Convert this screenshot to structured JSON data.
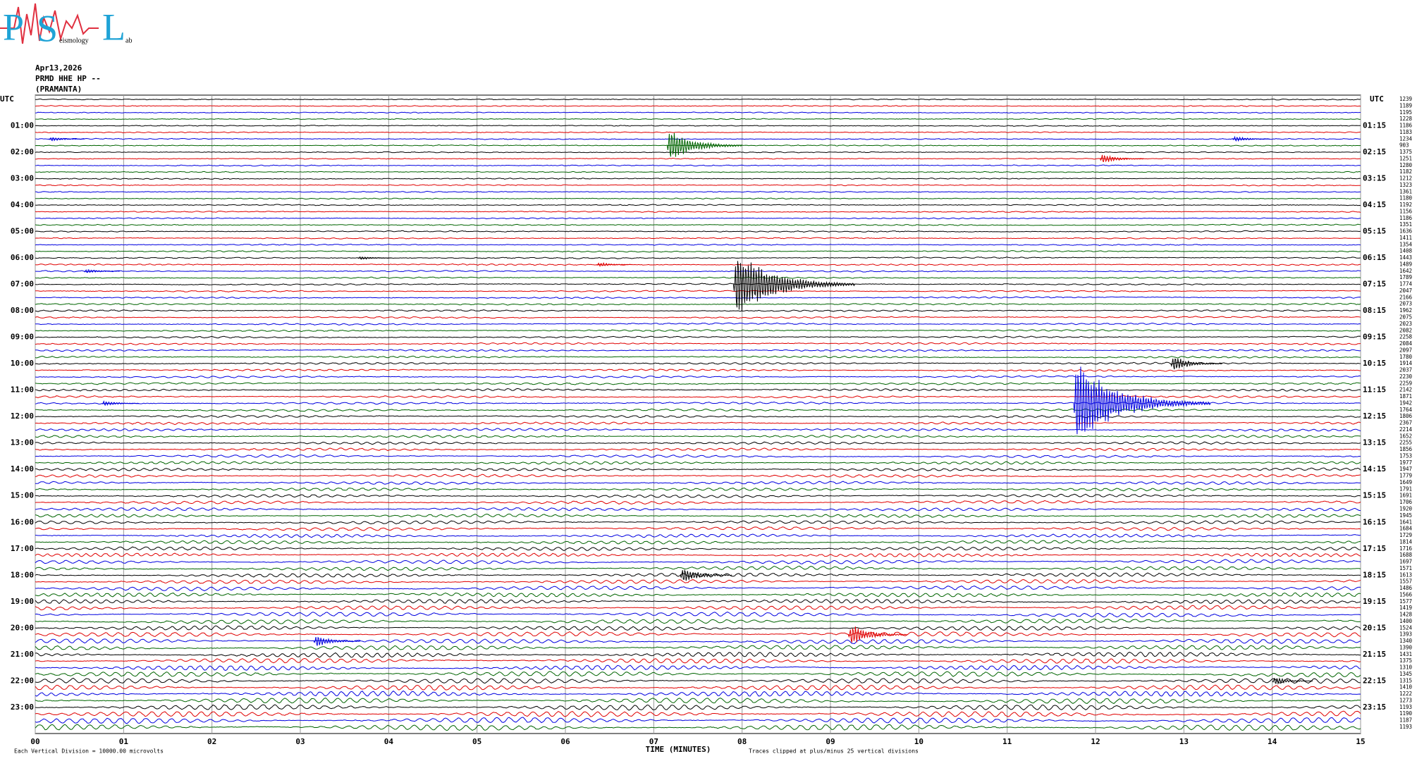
{
  "chart_data": {
    "type": "helicorder",
    "logo": {
      "letters": [
        "P",
        "S",
        "L"
      ],
      "words": [
        "eismology",
        "ab"
      ]
    },
    "header": [
      "Apr13,2026",
      "PRMD HHE HP --",
      "(PRAMANTA)"
    ],
    "left_labels": [
      "UTC",
      "01:00",
      "02:00",
      "03:00",
      "04:00",
      "05:00",
      "06:00",
      "07:00",
      "08:00",
      "09:00",
      "10:00",
      "11:00",
      "12:00",
      "13:00",
      "14:00",
      "15:00",
      "16:00",
      "17:00",
      "18:00",
      "19:00",
      "20:00",
      "21:00",
      "22:00",
      "23:00"
    ],
    "right_labels": [
      "UTC",
      "01:15",
      "02:15",
      "03:15",
      "04:15",
      "05:15",
      "06:15",
      "07:15",
      "08:15",
      "09:15",
      "10:15",
      "11:15",
      "12:15",
      "13:15",
      "14:15",
      "15:15",
      "16:15",
      "17:15",
      "18:15",
      "19:15",
      "20:15",
      "21:15",
      "22:15",
      "23:15"
    ],
    "trace_counts": [
      1239,
      1189,
      1195,
      1228,
      1186,
      1183,
      1234,
      903,
      1375,
      1251,
      1280,
      1182,
      1212,
      1323,
      1361,
      1180,
      1192,
      1156,
      1186,
      1351,
      1636,
      1411,
      1354,
      1408,
      1443,
      1489,
      1642,
      1789,
      1774,
      2047,
      2166,
      2073,
      1962,
      2075,
      2023,
      2082,
      2258,
      2084,
      2097,
      1780,
      1914,
      2037,
      2230,
      2259,
      2142,
      1871,
      1942,
      1764,
      1806,
      2367,
      2214,
      1652,
      2255,
      1856,
      1753,
      1977,
      1947,
      1779,
      1649,
      1791,
      1691,
      1706,
      1920,
      1945,
      1641,
      1684,
      1729,
      1814,
      1716,
      1688,
      1697,
      1571,
      1613,
      1557,
      1486,
      1566,
      1577,
      1419,
      1428,
      1400,
      1524,
      1393,
      1340,
      1390,
      1431,
      1375,
      1310,
      1345,
      1315,
      1410,
      1222,
      1273,
      1193,
      1190,
      1187,
      1193
    ],
    "trace_colors": [
      "#000000",
      "#e00000",
      "#0000e0",
      "#006400"
    ],
    "xlim": [
      0,
      15
    ],
    "xticks": [
      {
        "value": 0,
        "label": "00"
      },
      {
        "value": 1,
        "label": "01"
      },
      {
        "value": 2,
        "label": "02"
      },
      {
        "value": 3,
        "label": "03"
      },
      {
        "value": 4,
        "label": "04"
      },
      {
        "value": 5,
        "label": "05"
      },
      {
        "value": 6,
        "label": "06"
      },
      {
        "value": 7,
        "label": "07"
      },
      {
        "value": 8,
        "label": "08"
      },
      {
        "value": 9,
        "label": "09"
      },
      {
        "value": 10,
        "label": "10"
      },
      {
        "value": 11,
        "label": "11"
      },
      {
        "value": 12,
        "label": "12"
      },
      {
        "value": 13,
        "label": "13"
      },
      {
        "value": 14,
        "label": "14"
      },
      {
        "value": 15,
        "label": "15"
      }
    ],
    "xlabel": "TIME (MINUTES)",
    "footer_left": "Each Vertical Division = 10000.00 microvolts",
    "footer_right": "Traces clipped at plus/minus 25 vertical divisions",
    "events": [
      {
        "trace": 6,
        "minute": 0.2,
        "amplitude": 0.5
      },
      {
        "trace": 6,
        "minute": 13.6,
        "amplitude": 0.6
      },
      {
        "trace": 7,
        "minute": 7.2,
        "amplitude": 3
      },
      {
        "trace": 9,
        "minute": 12.1,
        "amplitude": 1
      },
      {
        "trace": 24,
        "minute": 3.7,
        "amplitude": 0.4
      },
      {
        "trace": 25,
        "minute": 6.4,
        "amplitude": 0.5
      },
      {
        "trace": 26,
        "minute": 0.6,
        "amplitude": 0.5
      },
      {
        "trace": 28,
        "minute": 7.95,
        "amplitude": 6
      },
      {
        "trace": 40,
        "minute": 12.9,
        "amplitude": 1.5
      },
      {
        "trace": 46,
        "minute": 0.8,
        "amplitude": 0.6
      },
      {
        "trace": 46,
        "minute": 11.8,
        "amplitude": 7
      },
      {
        "trace": 72,
        "minute": 7.35,
        "amplitude": 1.5
      },
      {
        "trace": 81,
        "minute": 9.25,
        "amplitude": 2
      },
      {
        "trace": 82,
        "minute": 3.2,
        "amplitude": 1.2
      },
      {
        "trace": 88,
        "minute": 14.05,
        "amplitude": 0.8
      }
    ]
  }
}
